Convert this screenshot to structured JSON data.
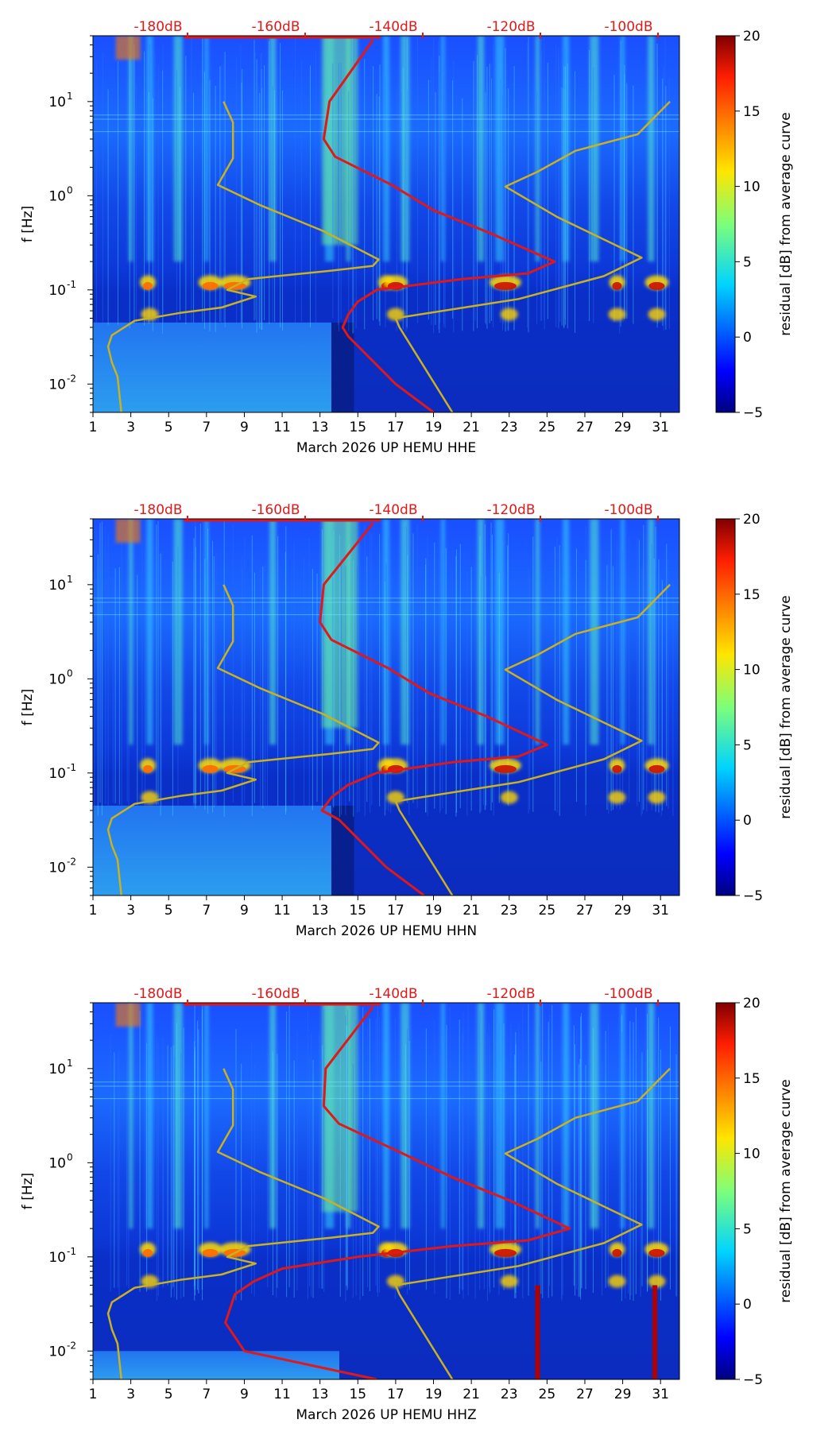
{
  "chart_data": [
    {
      "type": "heatmap",
      "xlabel": "March 2026 UP HEMU  HHE",
      "ylabel": "f [Hz]",
      "x_ticks": [
        "1",
        "3",
        "5",
        "7",
        "9",
        "11",
        "13",
        "15",
        "17",
        "19",
        "21",
        "23",
        "25",
        "27",
        "29",
        "31"
      ],
      "y_ticks": [
        {
          "label": "10",
          "exp": "1"
        },
        {
          "label": "10",
          "exp": "0"
        },
        {
          "label": "10",
          "exp": "-1"
        },
        {
          "label": "10",
          "exp": "-2"
        }
      ],
      "db_labels": [
        "-180dB",
        "-160dB",
        "-140dB",
        "-120dB",
        "-100dB"
      ],
      "colorbar": {
        "label": "residual [dB] from average curve",
        "min": -5,
        "max": 20,
        "ticks": [
          "20",
          "15",
          "10",
          "5",
          "0",
          "−5"
        ]
      },
      "xlim": [
        1,
        32
      ],
      "ylim_hz": [
        0.005,
        50
      ],
      "bright_bands_day": [
        3,
        4,
        5.5,
        7,
        10.5,
        13.5,
        14.5,
        16.5,
        17.5,
        19.5,
        21.5,
        22.5,
        24.5,
        26,
        27.5,
        29,
        30.5
      ],
      "series": [
        {
          "name": "gold_noise_model",
          "color": "#c9b11f",
          "x_days": [
            7.9,
            8.4,
            8.4,
            7.6,
            9.8,
            13.2,
            16.1,
            15.8,
            13.6,
            9.2,
            8.1,
            9.6,
            7.8,
            5.6,
            3.2,
            2.0,
            1.8,
            2.0,
            2.3,
            2.5
          ],
          "y_hz": [
            10,
            6,
            2.5,
            1.3,
            0.8,
            0.42,
            0.21,
            0.18,
            0.16,
            0.13,
            0.1,
            0.085,
            0.065,
            0.057,
            0.047,
            0.033,
            0.025,
            0.017,
            0.012,
            0.005
          ]
        },
        {
          "name": "gold_noise_model_2",
          "color": "#c9b11f",
          "x_days": [
            31.5,
            29.8,
            26.5,
            24.5,
            22.8,
            25.5,
            30,
            28,
            23.5,
            17,
            17.2,
            20
          ],
          "y_hz": [
            10,
            4.5,
            3.0,
            1.8,
            1.25,
            0.6,
            0.22,
            0.14,
            0.08,
            0.05,
            0.04,
            0.005
          ]
        },
        {
          "name": "red_average",
          "color": "#e01818",
          "x_days": [
            15.8,
            13.5,
            13.2,
            13.8,
            16.8,
            19,
            22,
            25.4,
            24,
            20.5,
            16,
            15,
            14.5,
            14.2,
            14.5,
            17,
            19
          ],
          "y_hz": [
            45,
            10,
            4,
            2.6,
            1.3,
            0.7,
            0.4,
            0.2,
            0.15,
            0.13,
            0.1,
            0.075,
            0.055,
            0.04,
            0.032,
            0.01,
            0.005
          ]
        }
      ]
    },
    {
      "type": "heatmap",
      "xlabel": "March 2026 UP HEMU  HHN",
      "ylabel": "f [Hz]",
      "x_ticks": [
        "1",
        "3",
        "5",
        "7",
        "9",
        "11",
        "13",
        "15",
        "17",
        "19",
        "21",
        "23",
        "25",
        "27",
        "29",
        "31"
      ],
      "y_ticks": [
        {
          "label": "10",
          "exp": "1"
        },
        {
          "label": "10",
          "exp": "0"
        },
        {
          "label": "10",
          "exp": "-1"
        },
        {
          "label": "10",
          "exp": "-2"
        }
      ],
      "db_labels": [
        "-180dB",
        "-160dB",
        "-140dB",
        "-120dB",
        "-100dB"
      ],
      "colorbar": {
        "label": "residual [dB] from average curve",
        "min": -5,
        "max": 20,
        "ticks": [
          "20",
          "15",
          "10",
          "5",
          "0",
          "−5"
        ]
      },
      "xlim": [
        1,
        32
      ],
      "ylim_hz": [
        0.005,
        50
      ],
      "bright_bands_day": [
        3,
        4,
        5.5,
        7,
        10.5,
        13.5,
        14.5,
        16.5,
        17.5,
        19.5,
        21.5,
        22.5,
        24.5,
        26,
        27.5,
        29,
        30.5
      ],
      "series": [
        {
          "name": "gold_noise_model",
          "color": "#c9b11f",
          "x_days": [
            7.9,
            8.4,
            8.4,
            7.6,
            9.8,
            13.2,
            16.1,
            15.8,
            13.6,
            9.2,
            8.1,
            9.6,
            7.8,
            5.6,
            3.2,
            2.0,
            1.8,
            2.0,
            2.3,
            2.5
          ],
          "y_hz": [
            10,
            6,
            2.5,
            1.3,
            0.8,
            0.42,
            0.21,
            0.18,
            0.16,
            0.13,
            0.1,
            0.085,
            0.065,
            0.057,
            0.047,
            0.033,
            0.025,
            0.017,
            0.012,
            0.005
          ]
        },
        {
          "name": "gold_noise_model_2",
          "color": "#c9b11f",
          "x_days": [
            31.5,
            29.8,
            26.5,
            24.5,
            22.8,
            25.5,
            30,
            28,
            23.5,
            17,
            17.2,
            20
          ],
          "y_hz": [
            10,
            4.5,
            3.0,
            1.8,
            1.25,
            0.6,
            0.22,
            0.14,
            0.08,
            0.05,
            0.04,
            0.005
          ]
        },
        {
          "name": "red_average",
          "color": "#e01818",
          "x_days": [
            15.8,
            13.2,
            13.0,
            13.6,
            16.6,
            18.8,
            21.8,
            25.0,
            23.5,
            20.0,
            16,
            14.5,
            13.6,
            13.1,
            14.0,
            16.5,
            18.5
          ],
          "y_hz": [
            45,
            10,
            4,
            2.6,
            1.3,
            0.7,
            0.4,
            0.2,
            0.15,
            0.13,
            0.1,
            0.075,
            0.055,
            0.04,
            0.032,
            0.01,
            0.005
          ]
        }
      ]
    },
    {
      "type": "heatmap",
      "xlabel": "March 2026 UP HEMU  HHZ",
      "ylabel": "f [Hz]",
      "x_ticks": [
        "1",
        "3",
        "5",
        "7",
        "9",
        "11",
        "13",
        "15",
        "17",
        "19",
        "21",
        "23",
        "25",
        "27",
        "29",
        "31"
      ],
      "y_ticks": [
        {
          "label": "10",
          "exp": "1"
        },
        {
          "label": "10",
          "exp": "0"
        },
        {
          "label": "10",
          "exp": "-1"
        },
        {
          "label": "10",
          "exp": "-2"
        }
      ],
      "db_labels": [
        "-180dB",
        "-160dB",
        "-140dB",
        "-120dB",
        "-100dB"
      ],
      "colorbar": {
        "label": "residual [dB] from average curve",
        "min": -5,
        "max": 20,
        "ticks": [
          "20",
          "15",
          "10",
          "5",
          "0",
          "−5"
        ]
      },
      "xlim": [
        1,
        32
      ],
      "ylim_hz": [
        0.005,
        50
      ],
      "bright_bands_day": [
        3,
        4,
        5.5,
        7,
        10.5,
        13.5,
        14.5,
        16.5,
        17.5,
        19.5,
        21.5,
        22.5,
        24.5,
        26,
        27.5,
        29,
        30.5
      ],
      "series": [
        {
          "name": "gold_noise_model",
          "color": "#c9b11f",
          "x_days": [
            7.9,
            8.4,
            8.4,
            7.6,
            9.8,
            13.2,
            16.1,
            15.8,
            13.6,
            9.2,
            8.1,
            9.6,
            7.8,
            5.6,
            3.2,
            2.0,
            1.8,
            2.0,
            2.3,
            2.5
          ],
          "y_hz": [
            10,
            6,
            2.5,
            1.3,
            0.8,
            0.42,
            0.21,
            0.18,
            0.16,
            0.13,
            0.1,
            0.085,
            0.065,
            0.057,
            0.047,
            0.033,
            0.025,
            0.017,
            0.012,
            0.005
          ]
        },
        {
          "name": "gold_noise_model_2",
          "color": "#c9b11f",
          "x_days": [
            31.5,
            29.8,
            26.5,
            24.5,
            22.8,
            25.5,
            30,
            28,
            23.5,
            17,
            17.2,
            20
          ],
          "y_hz": [
            10,
            4.5,
            3.0,
            1.8,
            1.25,
            0.6,
            0.22,
            0.14,
            0.08,
            0.05,
            0.04,
            0.005
          ]
        },
        {
          "name": "red_average",
          "color": "#e01818",
          "x_days": [
            15.8,
            13.3,
            13.2,
            14.0,
            17.2,
            20.0,
            23.0,
            26.2,
            24.0,
            20.0,
            15,
            11,
            9.5,
            8.5,
            8.0,
            9.0,
            16.0
          ],
          "y_hz": [
            45,
            10,
            4,
            2.6,
            1.3,
            0.7,
            0.4,
            0.2,
            0.15,
            0.13,
            0.1,
            0.075,
            0.055,
            0.04,
            0.02,
            0.01,
            0.005
          ]
        }
      ]
    }
  ]
}
